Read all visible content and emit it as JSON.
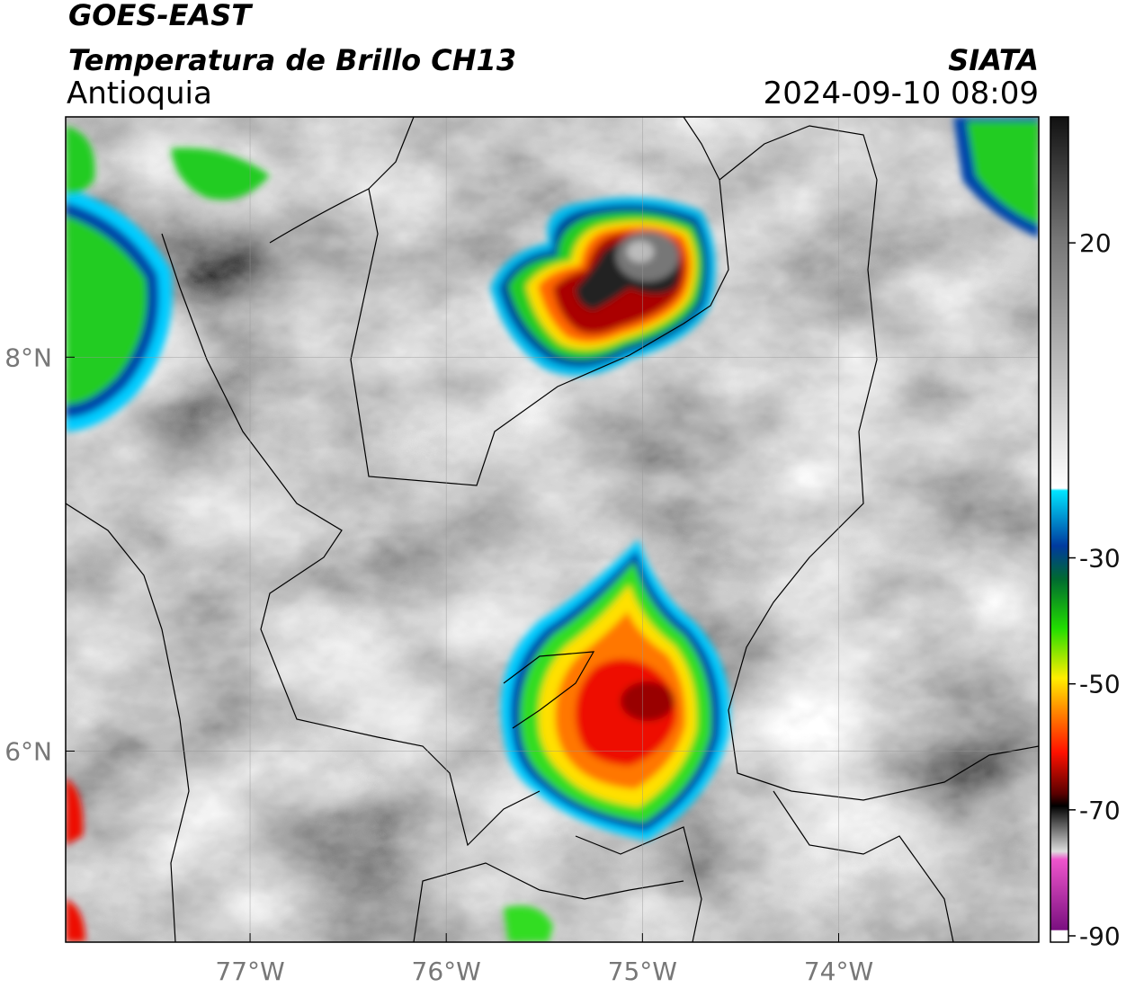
{
  "header": {
    "satellite": "GOES-EAST",
    "product": "Temperatura de Brillo CH13",
    "region": "Antioquia",
    "source": "SIATA",
    "datetime": "2024-09-10 08:09"
  },
  "map": {
    "xlim": [
      -77.94,
      -72.98
    ],
    "ylim": [
      5.03,
      9.22
    ],
    "xticks": [
      {
        "value": -77,
        "label": "77°W"
      },
      {
        "value": -76,
        "label": "76°W"
      },
      {
        "value": -75,
        "label": "75°W"
      },
      {
        "value": -74,
        "label": "74°W"
      }
    ],
    "yticks": [
      {
        "value": 8,
        "label": "8°N"
      },
      {
        "value": 6,
        "label": "6°N"
      }
    ]
  },
  "colorbar": {
    "range": [
      -91,
      40
    ],
    "ticks": [
      20,
      -30,
      -50,
      -70,
      -90
    ]
  }
}
